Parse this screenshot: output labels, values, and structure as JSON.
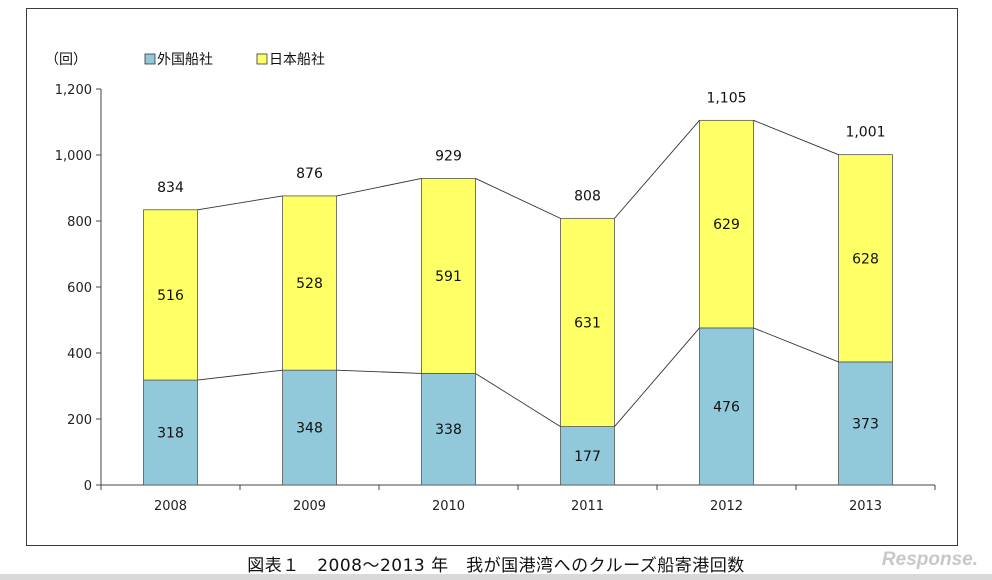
{
  "chart_data": {
    "type": "bar",
    "stacked": true,
    "unit_label": "（回）",
    "categories": [
      "2008",
      "2009",
      "2010",
      "2011",
      "2012",
      "2013"
    ],
    "series": [
      {
        "name": "外国船社",
        "color": "#92c9da",
        "values": [
          318,
          348,
          338,
          177,
          476,
          373
        ]
      },
      {
        "name": "日本船社",
        "color": "#ffff66",
        "values": [
          516,
          528,
          591,
          631,
          629,
          628
        ]
      }
    ],
    "totals": [
      "834",
      "876",
      "929",
      "808",
      "1,105",
      "1,001"
    ],
    "series_value_labels": [
      [
        "318",
        "348",
        "338",
        "177",
        "476",
        "373"
      ],
      [
        "516",
        "528",
        "591",
        "631",
        "629",
        "628"
      ]
    ],
    "y_ticks": [
      {
        "value": 0,
        "label": "0"
      },
      {
        "value": 200,
        "label": "200"
      },
      {
        "value": 400,
        "label": "400"
      },
      {
        "value": 600,
        "label": "600"
      },
      {
        "value": 800,
        "label": "800"
      },
      {
        "value": 1000,
        "label": "1,000"
      },
      {
        "value": 1200,
        "label": "1,200"
      }
    ],
    "ylim": [
      0,
      1200
    ],
    "grid": false,
    "legend_position": "top-left",
    "connector_lines": true
  },
  "caption": "図表１　2008～2013 年　我が国港湾へのクルーズ船寄港回数",
  "watermark": "Response."
}
